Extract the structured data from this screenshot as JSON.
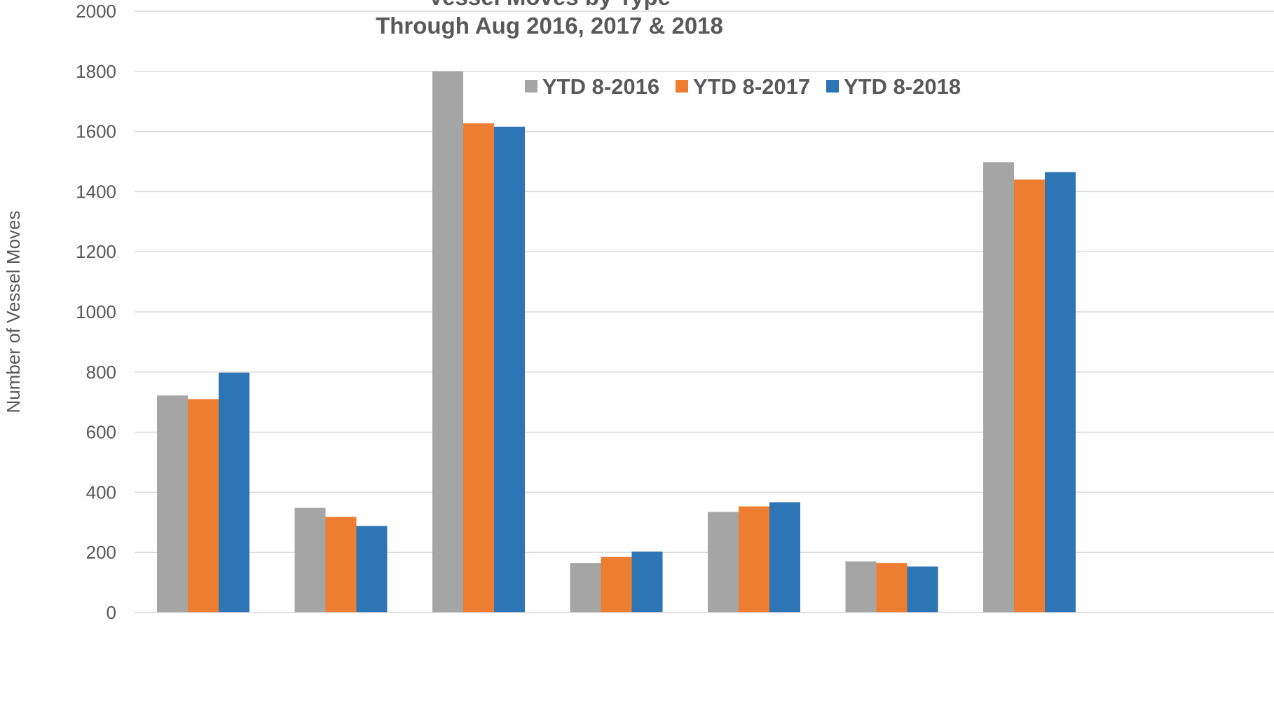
{
  "chart_data": {
    "type": "bar",
    "title": "Vessel Moves by Type",
    "subtitle": "Through Aug 2016, 2017 & 2018",
    "ylabel": "Number of Vessel Moves",
    "ylim": [
      0,
      2000
    ],
    "yticks": [
      0,
      200,
      400,
      600,
      800,
      1000,
      1200,
      1400,
      1600,
      1800,
      2000
    ],
    "grid": true,
    "legend_position": "top-right",
    "categories": [
      "",
      "",
      "",
      "",
      "",
      "",
      ""
    ],
    "series": [
      {
        "name": "YTD 8-2016",
        "color": "#a5a5a5",
        "values": [
          722,
          348,
          1800,
          165,
          335,
          170,
          1498
        ]
      },
      {
        "name": "YTD 8-2017",
        "color": "#ed7d31",
        "values": [
          710,
          318,
          1627,
          185,
          353,
          165,
          1440
        ]
      },
      {
        "name": "YTD 8-2018",
        "color": "#2e75b6",
        "values": [
          798,
          288,
          1616,
          203,
          367,
          153,
          1465
        ]
      }
    ]
  }
}
